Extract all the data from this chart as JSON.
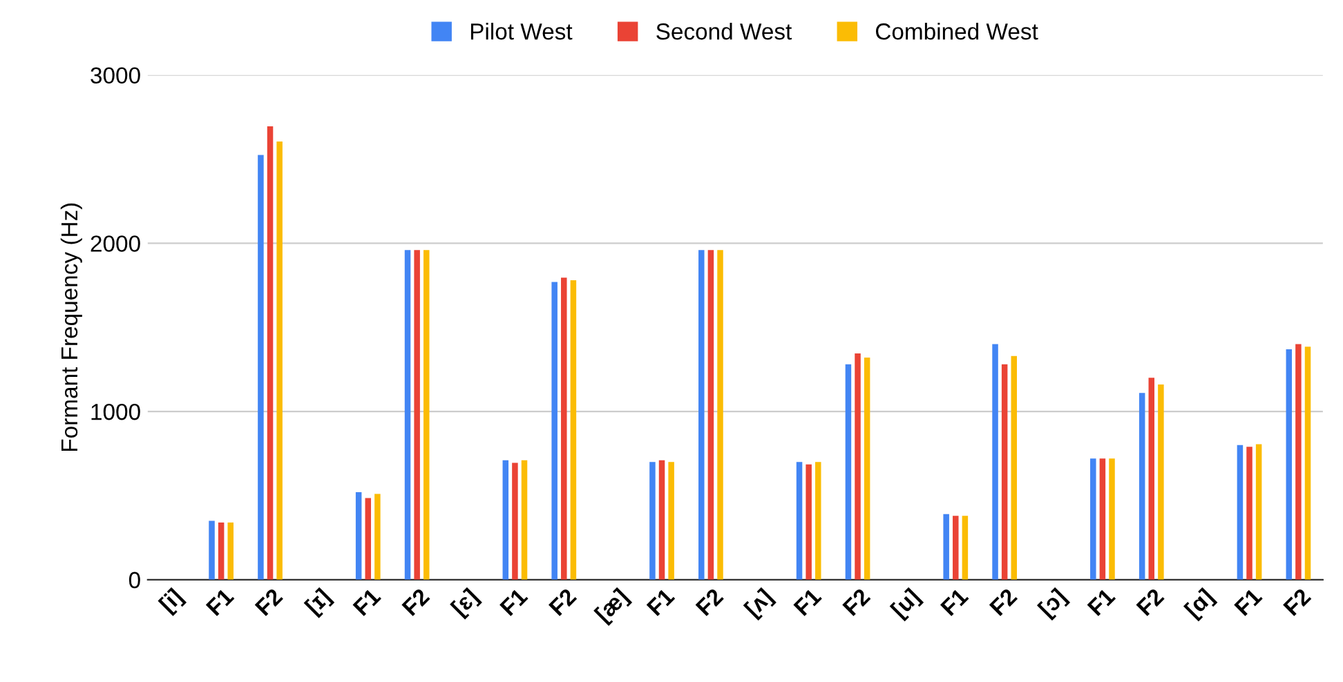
{
  "chart_data": {
    "type": "bar",
    "ylabel": "Formant Frequency (Hz)",
    "categories": [
      "[i]",
      "F1",
      "F2",
      "[ɪ]",
      "F1",
      "F2",
      "[ɛ]",
      "F1",
      "F2",
      "[æ]",
      "F1",
      "F2",
      "[ʌ]",
      "F1",
      "F2",
      "[u]",
      "F1",
      "F2",
      "[ɔ]",
      "F1",
      "F2",
      "[ɑ]",
      "F1",
      "F2"
    ],
    "series": [
      {
        "name": "Pilot West",
        "color": "#4285f4",
        "values": [
          null,
          350,
          2525,
          null,
          520,
          1960,
          null,
          710,
          1770,
          null,
          700,
          1960,
          null,
          700,
          1280,
          null,
          390,
          1400,
          null,
          720,
          1110,
          null,
          800,
          1370
        ]
      },
      {
        "name": "Second West",
        "color": "#ea4335",
        "values": [
          null,
          340,
          2695,
          null,
          485,
          1960,
          null,
          695,
          1795,
          null,
          710,
          1960,
          null,
          685,
          1345,
          null,
          380,
          1280,
          null,
          720,
          1200,
          null,
          790,
          1400
        ]
      },
      {
        "name": "Combined West",
        "color": "#fbbc04",
        "values": [
          null,
          340,
          2605,
          null,
          510,
          1960,
          null,
          710,
          1780,
          null,
          700,
          1960,
          null,
          700,
          1320,
          null,
          380,
          1330,
          null,
          720,
          1160,
          null,
          805,
          1385
        ]
      }
    ],
    "ylim": [
      0,
      3000
    ],
    "yticks": [
      0,
      1000,
      2000,
      3000
    ],
    "grid": "y",
    "legend": "top"
  }
}
